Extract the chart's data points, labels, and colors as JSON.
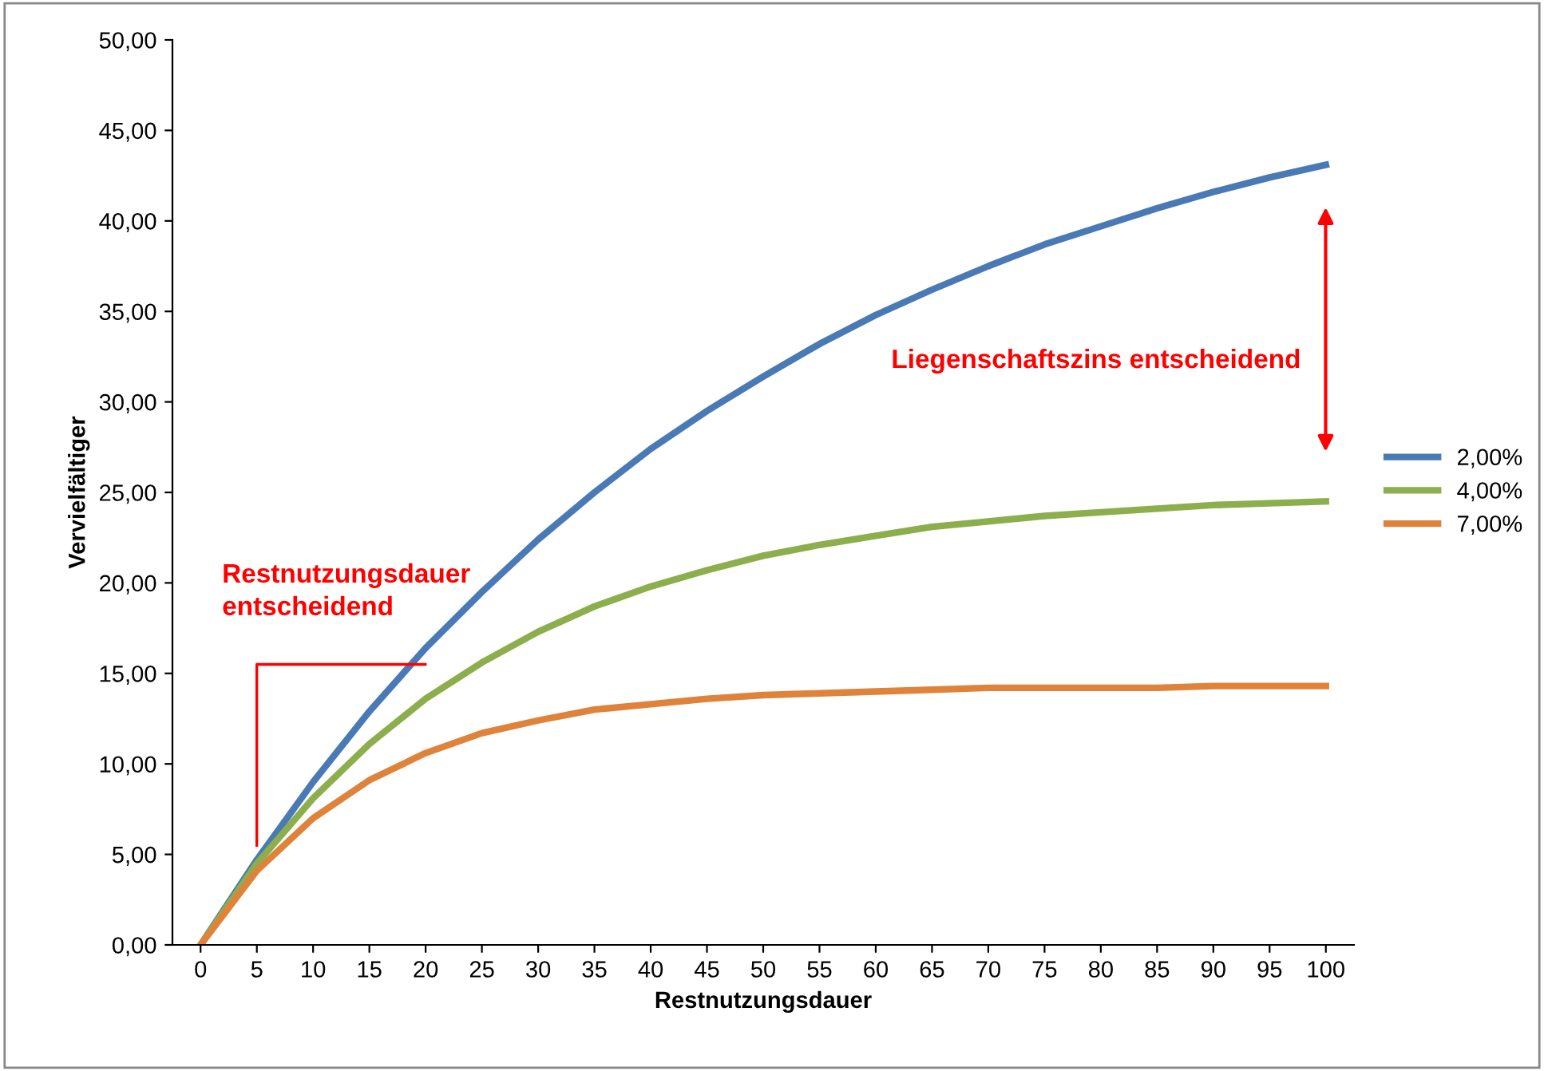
{
  "chart_data": {
    "type": "line",
    "xlabel": "Restnutzungsdauer",
    "ylabel": "Vervielfältiger",
    "categories": [
      "0",
      "5",
      "10",
      "15",
      "20",
      "25",
      "30",
      "35",
      "40",
      "45",
      "50",
      "55",
      "60",
      "65",
      "70",
      "75",
      "80",
      "85",
      "90",
      "95",
      "100"
    ],
    "series": [
      {
        "name": "2,00%",
        "color": "#4a7ab5",
        "values": [
          0,
          4.7,
          9.0,
          12.9,
          16.4,
          19.5,
          22.4,
          25.0,
          27.4,
          29.5,
          31.4,
          33.2,
          34.8,
          36.2,
          37.5,
          38.7,
          39.7,
          40.7,
          41.6,
          42.4,
          43.1
        ]
      },
      {
        "name": "4,00%",
        "color": "#8cae4c",
        "values": [
          0,
          4.5,
          8.1,
          11.1,
          13.6,
          15.6,
          17.3,
          18.7,
          19.8,
          20.7,
          21.5,
          22.1,
          22.6,
          23.1,
          23.4,
          23.7,
          23.9,
          24.1,
          24.3,
          24.4,
          24.5
        ]
      },
      {
        "name": "7,00%",
        "color": "#e0833a",
        "values": [
          0,
          4.1,
          7.0,
          9.1,
          10.6,
          11.7,
          12.4,
          13.0,
          13.3,
          13.6,
          13.8,
          13.9,
          14.0,
          14.1,
          14.2,
          14.2,
          14.2,
          14.2,
          14.3,
          14.3,
          14.3
        ]
      }
    ],
    "ylim": [
      0,
      50
    ],
    "yticks": [
      {
        "value": 0,
        "label": "0,00"
      },
      {
        "value": 5,
        "label": "5,00"
      },
      {
        "value": 10,
        "label": "10,00"
      },
      {
        "value": 15,
        "label": "15,00"
      },
      {
        "value": 20,
        "label": "20,00"
      },
      {
        "value": 25,
        "label": "25,00"
      },
      {
        "value": 30,
        "label": "30,00"
      },
      {
        "value": 35,
        "label": "35,00"
      },
      {
        "value": 40,
        "label": "40,00"
      },
      {
        "value": 45,
        "label": "45,00"
      },
      {
        "value": 50,
        "label": "50,00"
      }
    ],
    "annotations": [
      "Liegenschaftszins entscheidend",
      "Restnutzungsdauer\nentscheidend"
    ],
    "legend": "right",
    "grid": false,
    "marker": "none",
    "line_style": "solid"
  }
}
